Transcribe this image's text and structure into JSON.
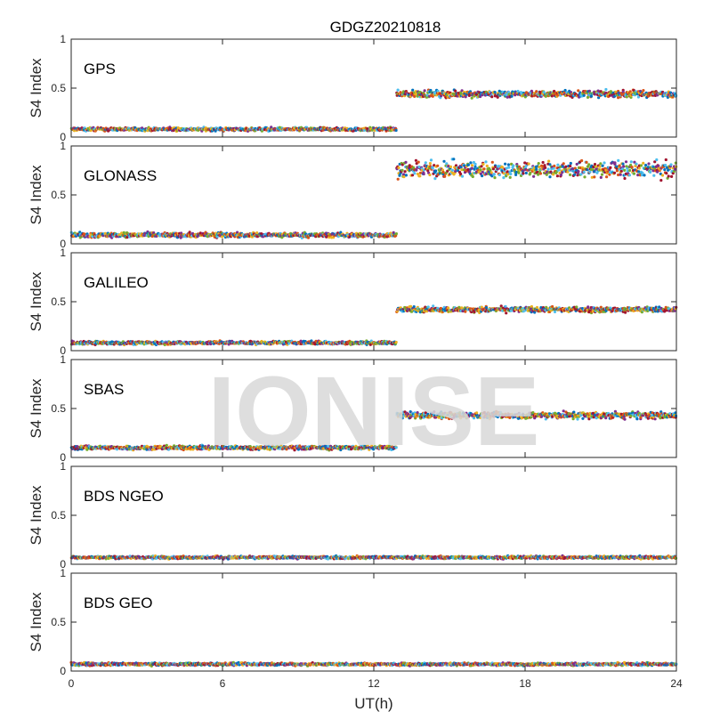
{
  "figure": {
    "title": "GDGZ20210818",
    "xlabel": "UT(h)",
    "watermark": "IONISE"
  },
  "palette": [
    "#0072BD",
    "#D95319",
    "#EDB120",
    "#7E2F8E",
    "#77AC30",
    "#4DBEEE",
    "#A2142F"
  ],
  "chart_data": [
    {
      "type": "scatter",
      "title": "GPS",
      "ylabel": "S4 Index",
      "xlim": [
        0,
        24
      ],
      "ylim": [
        0,
        1
      ],
      "xticks": [
        0,
        6,
        12,
        18,
        24
      ],
      "yticks": [
        0,
        0.5,
        1
      ],
      "grid": false,
      "segments": [
        {
          "x_start": 0,
          "x_end": 12.9,
          "mean": 0.08,
          "spread": 0.025
        },
        {
          "x_start": 12.9,
          "x_end": 24,
          "mean": 0.44,
          "spread": 0.05
        }
      ]
    },
    {
      "type": "scatter",
      "title": "GLONASS",
      "ylabel": "S4 Index",
      "xlim": [
        0,
        24
      ],
      "ylim": [
        0,
        1
      ],
      "xticks": [
        0,
        6,
        12,
        18,
        24
      ],
      "yticks": [
        0,
        0.5,
        1
      ],
      "grid": false,
      "segments": [
        {
          "x_start": 0,
          "x_end": 12.9,
          "mean": 0.09,
          "spread": 0.035
        },
        {
          "x_start": 12.9,
          "x_end": 24,
          "mean": 0.76,
          "spread": 0.12
        }
      ]
    },
    {
      "type": "scatter",
      "title": "GALILEO",
      "ylabel": "S4 Index",
      "xlim": [
        0,
        24
      ],
      "ylim": [
        0,
        1
      ],
      "xticks": [
        0,
        6,
        12,
        18,
        24
      ],
      "yticks": [
        0,
        0.5,
        1
      ],
      "grid": false,
      "segments": [
        {
          "x_start": 0,
          "x_end": 12.9,
          "mean": 0.08,
          "spread": 0.025
        },
        {
          "x_start": 12.9,
          "x_end": 24,
          "mean": 0.42,
          "spread": 0.04
        }
      ]
    },
    {
      "type": "scatter",
      "title": "SBAS",
      "ylabel": "S4 Index",
      "xlim": [
        0,
        24
      ],
      "ylim": [
        0,
        1
      ],
      "xticks": [
        0,
        6,
        12,
        18,
        24
      ],
      "yticks": [
        0,
        0.5,
        1
      ],
      "grid": false,
      "segments": [
        {
          "x_start": 0,
          "x_end": 12.9,
          "mean": 0.1,
          "spread": 0.03
        },
        {
          "x_start": 12.9,
          "x_end": 24,
          "mean": 0.43,
          "spread": 0.05
        }
      ]
    },
    {
      "type": "scatter",
      "title": "BDS NGEO",
      "ylabel": "S4 Index",
      "xlim": [
        0,
        24
      ],
      "ylim": [
        0,
        1
      ],
      "xticks": [
        0,
        6,
        12,
        18,
        24
      ],
      "yticks": [
        0,
        0.5,
        1
      ],
      "grid": false,
      "segments": [
        {
          "x_start": 0,
          "x_end": 24,
          "mean": 0.07,
          "spread": 0.02
        }
      ]
    },
    {
      "type": "scatter",
      "title": "BDS GEO",
      "ylabel": "S4 Index",
      "xlim": [
        0,
        24
      ],
      "ylim": [
        0,
        1
      ],
      "xticks": [
        0,
        6,
        12,
        18,
        24
      ],
      "yticks": [
        0,
        0.5,
        1
      ],
      "grid": false,
      "segments": [
        {
          "x_start": 0,
          "x_end": 24,
          "mean": 0.07,
          "spread": 0.02
        }
      ]
    }
  ]
}
